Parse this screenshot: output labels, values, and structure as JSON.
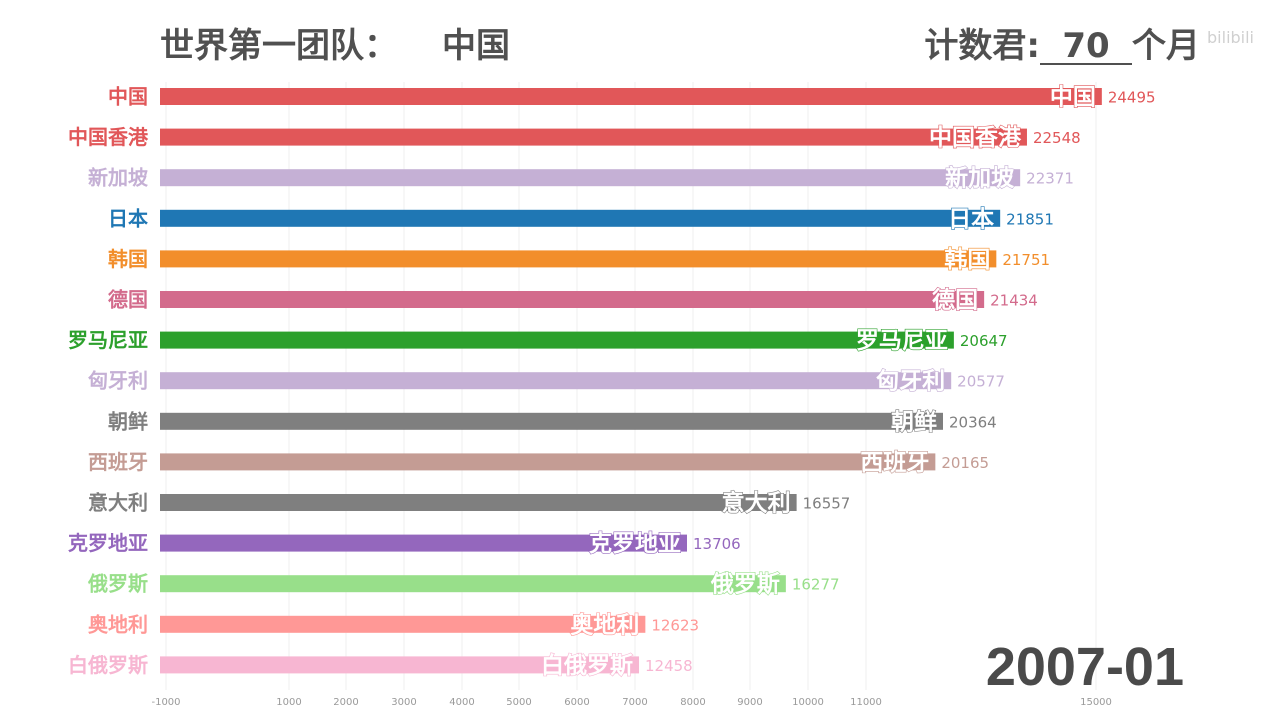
{
  "header": {
    "title_prefix": "世界第一团队：",
    "title_country": "中国",
    "counter_label": "计数君:",
    "counter_value": "70",
    "counter_unit": "个月"
  },
  "watermark": "bilibili",
  "date": "2007-01",
  "chart_data": {
    "type": "bar",
    "orientation": "horizontal",
    "categories": [
      "中国",
      "中国香港",
      "新加坡",
      "日本",
      "韩国",
      "德国",
      "罗马尼亚",
      "匈牙利",
      "朝鲜",
      "西班牙",
      "意大利",
      "克罗地亚",
      "俄罗斯",
      "奥地利",
      "白俄罗斯"
    ],
    "values": [
      24495,
      22548,
      22371,
      21851,
      21751,
      21434,
      20647,
      20577,
      20364,
      20165,
      16557,
      13706,
      16277,
      12623,
      12458
    ],
    "colors": [
      "#e15759",
      "#e15759",
      "#c5b0d5",
      "#1f77b4",
      "#f28e2b",
      "#d36b8c",
      "#2ca02c",
      "#c5b0d5",
      "#7f7f7f",
      "#c49c94",
      "#7f7f7f",
      "#9467bd",
      "#98df8a",
      "#ff9896",
      "#f7b6d2"
    ],
    "x_ticks": [
      "-1000",
      "1000",
      "2000",
      "3000",
      "4000",
      "5000",
      "6000",
      "7000",
      "8000",
      "9000",
      "10000",
      "11000",
      "15000"
    ],
    "legend": "none",
    "grid": true
  }
}
